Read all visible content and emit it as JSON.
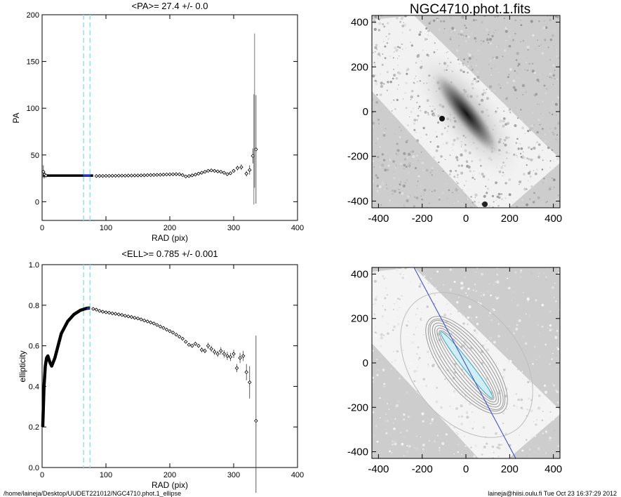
{
  "footer": {
    "path": "/home/laineja/Desktop/UUDET221012/NGC4710.phot.1_ellipse",
    "stamp": "laineja@hiisi.oulu.fi  Tue Oct 23 16:37:29 2012"
  },
  "image_panels": {
    "top_title": "NGC4710.phot.1.fits",
    "x_ticks": [
      "-400",
      "-200",
      "0",
      "200",
      "400"
    ],
    "y_ticks": [
      "-400",
      "-200",
      "0",
      "200",
      "400"
    ]
  },
  "chart_data": [
    {
      "type": "scatter",
      "title": "<PA>=  27.4 +/-   0.0",
      "xlabel": "RAD (pix)",
      "ylabel": "PA",
      "xlim": [
        0,
        400
      ],
      "ylim": [
        -20,
        200
      ],
      "x_ticks": [
        0,
        100,
        200,
        300,
        400
      ],
      "y_ticks": [
        0,
        50,
        100,
        150,
        200
      ],
      "x_tick_labels": [
        "0",
        "100",
        "200",
        "300",
        "400"
      ],
      "y_tick_labels": [
        "0",
        "50",
        "100",
        "150",
        "200"
      ],
      "mean_region_radii": [
        65,
        75
      ],
      "dense_band": {
        "x_start": 1,
        "x_end": 80,
        "y": 28
      },
      "points": [
        {
          "x": 2,
          "y": 32,
          "err": 7
        },
        {
          "x": 4,
          "y": 29,
          "err": 4
        },
        {
          "x": 6,
          "y": 28,
          "err": 2
        },
        {
          "x": 85,
          "y": 27.5
        },
        {
          "x": 90,
          "y": 27.6
        },
        {
          "x": 95,
          "y": 27.6
        },
        {
          "x": 100,
          "y": 27.7
        },
        {
          "x": 105,
          "y": 27.7
        },
        {
          "x": 110,
          "y": 27.8
        },
        {
          "x": 115,
          "y": 27.8
        },
        {
          "x": 120,
          "y": 27.9
        },
        {
          "x": 125,
          "y": 27.9
        },
        {
          "x": 130,
          "y": 27.9
        },
        {
          "x": 135,
          "y": 28
        },
        {
          "x": 140,
          "y": 28
        },
        {
          "x": 145,
          "y": 28.1
        },
        {
          "x": 150,
          "y": 28.1
        },
        {
          "x": 155,
          "y": 28.2
        },
        {
          "x": 160,
          "y": 28.3
        },
        {
          "x": 165,
          "y": 28.4
        },
        {
          "x": 170,
          "y": 28.5
        },
        {
          "x": 175,
          "y": 28.6
        },
        {
          "x": 180,
          "y": 28.7
        },
        {
          "x": 185,
          "y": 28.8
        },
        {
          "x": 190,
          "y": 29
        },
        {
          "x": 195,
          "y": 29.2
        },
        {
          "x": 200,
          "y": 29.3
        },
        {
          "x": 205,
          "y": 29.4
        },
        {
          "x": 210,
          "y": 29.5
        },
        {
          "x": 215,
          "y": 29.4
        },
        {
          "x": 220,
          "y": 28.5
        },
        {
          "x": 225,
          "y": 27
        },
        {
          "x": 230,
          "y": 27.5
        },
        {
          "x": 235,
          "y": 28.2
        },
        {
          "x": 240,
          "y": 29
        },
        {
          "x": 245,
          "y": 30
        },
        {
          "x": 250,
          "y": 31
        },
        {
          "x": 255,
          "y": 32
        },
        {
          "x": 260,
          "y": 33
        },
        {
          "x": 265,
          "y": 33.5
        },
        {
          "x": 270,
          "y": 33
        },
        {
          "x": 275,
          "y": 32.5
        },
        {
          "x": 280,
          "y": 32
        },
        {
          "x": 285,
          "y": 31
        },
        {
          "x": 290,
          "y": 29.5
        },
        {
          "x": 295,
          "y": 30.5
        },
        {
          "x": 300,
          "y": 33,
          "err": 2
        },
        {
          "x": 306,
          "y": 36,
          "err": 2.5
        },
        {
          "x": 312,
          "y": 37,
          "err": 3
        },
        {
          "x": 320,
          "y": 30,
          "err": 3
        },
        {
          "x": 325,
          "y": 34,
          "err": 5
        },
        {
          "x": 330,
          "y": 49,
          "err": 8
        },
        {
          "x": 335,
          "y": 56,
          "err": 58
        }
      ],
      "big_error_bar": {
        "x": 335,
        "low": -3,
        "high": 115,
        "x2": 335,
        "top": 180
      }
    },
    {
      "type": "scatter",
      "title": "<ELL>= 0.785 +/-  0.001",
      "xlabel": "RAD (pix)",
      "ylabel": "ellipticity",
      "xlim": [
        0,
        400
      ],
      "ylim": [
        0,
        1
      ],
      "x_ticks": [
        0,
        100,
        200,
        300,
        400
      ],
      "y_ticks": [
        0,
        0.2,
        0.4,
        0.6,
        0.8,
        1.0
      ],
      "x_tick_labels": [
        "0",
        "100",
        "200",
        "300",
        "400"
      ],
      "y_tick_labels": [
        "0.0",
        "0.2",
        "0.4",
        "0.6",
        "0.8",
        "1.0"
      ],
      "mean_region_radii": [
        65,
        75
      ],
      "dense_curve": [
        [
          1,
          0.2
        ],
        [
          2,
          0.3
        ],
        [
          3,
          0.4
        ],
        [
          5,
          0.5
        ],
        [
          7,
          0.54
        ],
        [
          9,
          0.55
        ],
        [
          12,
          0.52
        ],
        [
          15,
          0.5
        ],
        [
          20,
          0.54
        ],
        [
          25,
          0.6
        ],
        [
          30,
          0.66
        ],
        [
          40,
          0.72
        ],
        [
          50,
          0.755
        ],
        [
          60,
          0.775
        ],
        [
          70,
          0.785
        ],
        [
          75,
          0.786
        ]
      ],
      "points": [
        {
          "x": 80,
          "y": 0.782
        },
        {
          "x": 85,
          "y": 0.778
        },
        {
          "x": 90,
          "y": 0.772
        },
        {
          "x": 95,
          "y": 0.768
        },
        {
          "x": 100,
          "y": 0.765
        },
        {
          "x": 105,
          "y": 0.763
        },
        {
          "x": 110,
          "y": 0.76
        },
        {
          "x": 115,
          "y": 0.758
        },
        {
          "x": 120,
          "y": 0.755
        },
        {
          "x": 125,
          "y": 0.752
        },
        {
          "x": 130,
          "y": 0.748
        },
        {
          "x": 135,
          "y": 0.745
        },
        {
          "x": 140,
          "y": 0.742
        },
        {
          "x": 145,
          "y": 0.738
        },
        {
          "x": 150,
          "y": 0.735
        },
        {
          "x": 155,
          "y": 0.73
        },
        {
          "x": 160,
          "y": 0.725
        },
        {
          "x": 165,
          "y": 0.72
        },
        {
          "x": 170,
          "y": 0.715
        },
        {
          "x": 175,
          "y": 0.71
        },
        {
          "x": 180,
          "y": 0.703
        },
        {
          "x": 185,
          "y": 0.695
        },
        {
          "x": 190,
          "y": 0.688
        },
        {
          "x": 195,
          "y": 0.68
        },
        {
          "x": 200,
          "y": 0.672
        },
        {
          "x": 205,
          "y": 0.665
        },
        {
          "x": 210,
          "y": 0.655
        },
        {
          "x": 215,
          "y": 0.645
        },
        {
          "x": 220,
          "y": 0.635
        },
        {
          "x": 225,
          "y": 0.62
        },
        {
          "x": 230,
          "y": 0.605
        },
        {
          "x": 235,
          "y": 0.6,
          "err": 0.01
        },
        {
          "x": 240,
          "y": 0.61,
          "err": 0.01
        },
        {
          "x": 245,
          "y": 0.6,
          "err": 0.01
        },
        {
          "x": 250,
          "y": 0.58,
          "err": 0.012
        },
        {
          "x": 255,
          "y": 0.575,
          "err": 0.012
        },
        {
          "x": 260,
          "y": 0.6,
          "err": 0.015
        },
        {
          "x": 265,
          "y": 0.585,
          "err": 0.015
        },
        {
          "x": 270,
          "y": 0.57,
          "err": 0.015
        },
        {
          "x": 275,
          "y": 0.56,
          "err": 0.015
        },
        {
          "x": 280,
          "y": 0.575,
          "err": 0.018
        },
        {
          "x": 285,
          "y": 0.56,
          "err": 0.018
        },
        {
          "x": 290,
          "y": 0.55,
          "err": 0.02
        },
        {
          "x": 295,
          "y": 0.545,
          "err": 0.02
        },
        {
          "x": 300,
          "y": 0.56,
          "err": 0.02
        },
        {
          "x": 305,
          "y": 0.49,
          "err": 0.02
        },
        {
          "x": 310,
          "y": 0.54,
          "err": 0.025
        },
        {
          "x": 315,
          "y": 0.55,
          "err": 0.025
        },
        {
          "x": 320,
          "y": 0.47,
          "err": 0.04
        },
        {
          "x": 325,
          "y": 0.42,
          "err": 0.08
        },
        {
          "x": 335,
          "y": 0.23,
          "err": 0.42
        }
      ]
    }
  ]
}
